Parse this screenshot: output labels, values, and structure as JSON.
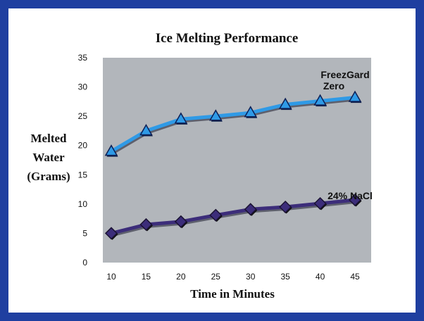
{
  "chart_data": {
    "type": "line",
    "title": "Ice Melting Performance",
    "xlabel": "Time in Minutes",
    "ylabel": [
      "Melted",
      "Water",
      "(Grams)"
    ],
    "x": [
      10,
      15,
      20,
      25,
      30,
      35,
      40,
      45
    ],
    "xlim": [
      10,
      45
    ],
    "ylim": [
      0,
      35
    ],
    "yticks": [
      0,
      5,
      10,
      15,
      20,
      25,
      30,
      35
    ],
    "grid": false,
    "plot_background": "#b2b6bb",
    "series": [
      {
        "name_lines": [
          "FreezGard",
          "Zero"
        ],
        "values": [
          19,
          22.5,
          24.5,
          25,
          25.6,
          27,
          27.6,
          28.2
        ],
        "color": "#2f9ae6",
        "marker": "triangle"
      },
      {
        "name_lines": [
          "24% NaCl"
        ],
        "values": [
          5,
          6.5,
          7,
          8.1,
          9.1,
          9.5,
          10.1,
          10.7
        ],
        "color": "#3c2d7a",
        "marker": "diamond"
      }
    ]
  }
}
